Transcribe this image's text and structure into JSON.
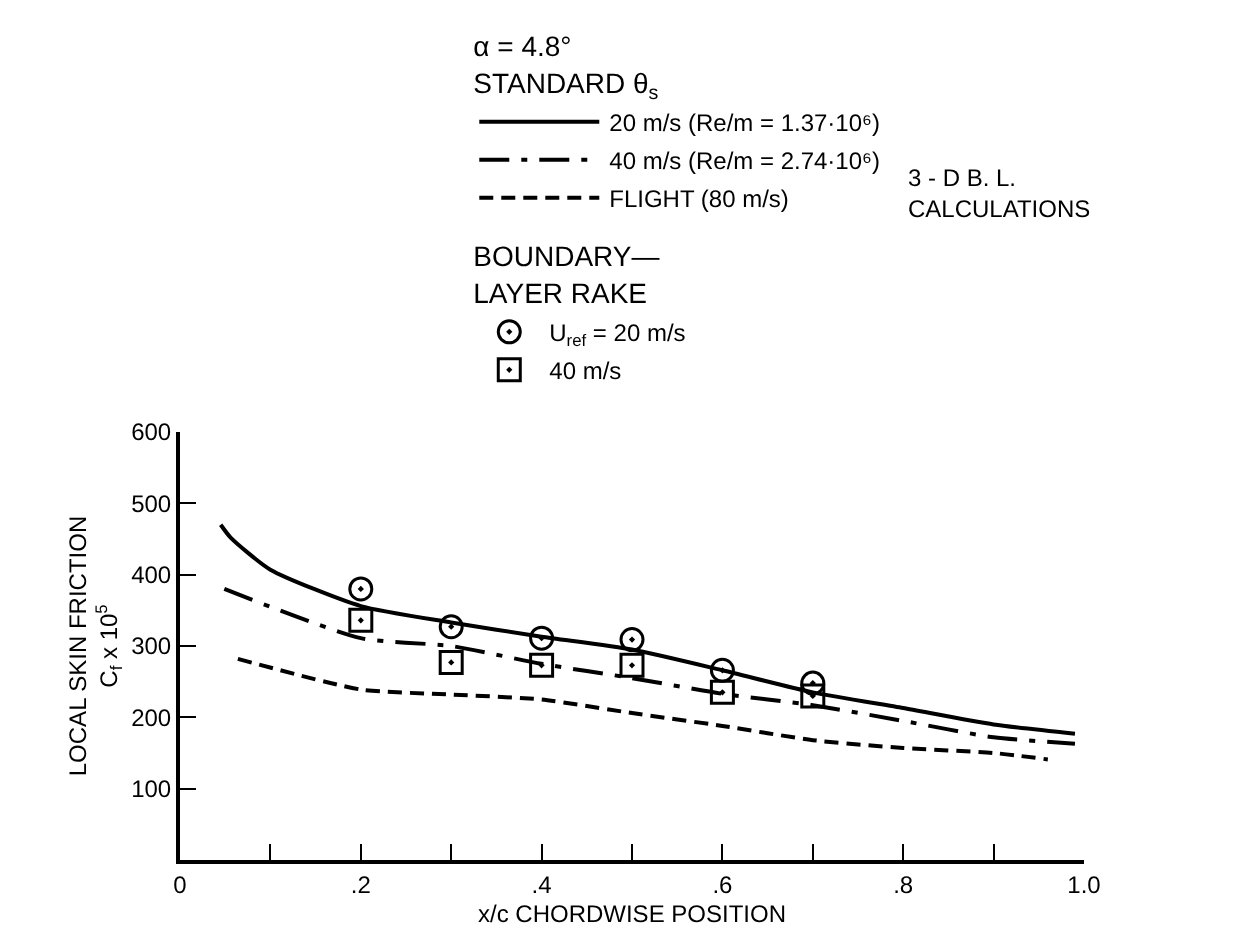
{
  "chart_data": {
    "type": "line",
    "legend_title": "α = 4.8°\nSTANDARD θ$_{s}$",
    "xlabel": "x/c CHORDWISE POSITION",
    "ylabel": "LOCAL SKIN FRICTION\nC$_{f}$ x 10$^{5}$",
    "xlim": [
      0,
      1.0
    ],
    "ylim": [
      0,
      600
    ],
    "xticks": [
      {
        "value": 0,
        "label": "0"
      },
      {
        "value": 0.1,
        "label": null
      },
      {
        "value": 0.2,
        "label": ".2"
      },
      {
        "value": 0.3,
        "label": null
      },
      {
        "value": 0.4,
        "label": ".4"
      },
      {
        "value": 0.5,
        "label": null
      },
      {
        "value": 0.6,
        "label": ".6"
      },
      {
        "value": 0.7,
        "label": null
      },
      {
        "value": 0.8,
        "label": ".8"
      },
      {
        "value": 0.9,
        "label": null
      },
      {
        "value": 1.0,
        "label": "1.0"
      }
    ],
    "yticks": [
      100,
      200,
      300,
      400,
      500,
      600
    ],
    "legend": "top",
    "annotations": [
      "3 - D B. L.\nCALCULATIONS",
      "BOUNDARY—\nLAYER RAKE"
    ],
    "series": [
      {
        "name": "20 m/s (Re/m = 1.37·10⁶)",
        "color": "#000000",
        "line_style": "solid",
        "marker": "none",
        "x": [
          0.045,
          0.056,
          0.1,
          0.2,
          0.3,
          0.4,
          0.5,
          0.6,
          0.7,
          0.8,
          0.9,
          0.99
        ],
        "values": [
          470,
          452,
          407,
          356,
          333,
          313,
          295,
          266,
          235,
          213,
          190,
          177
        ]
      },
      {
        "name": "40 m/s (Re/m = 2.74·10⁶)",
        "color": "#000000",
        "line_style": "dashdot",
        "marker": "none",
        "x": [
          0.049,
          0.2,
          0.3,
          0.4,
          0.5,
          0.6,
          0.7,
          0.8,
          0.9,
          0.99
        ],
        "values": [
          380,
          311,
          300,
          275,
          255,
          233,
          217,
          195,
          172,
          163
        ]
      },
      {
        "name": "FLIGHT (80 m/s)",
        "color": "#000000",
        "line_style": "dashed",
        "marker": "none",
        "x": [
          0.064,
          0.2,
          0.3,
          0.4,
          0.5,
          0.6,
          0.7,
          0.8,
          0.9,
          0.96
        ],
        "values": [
          282,
          239,
          232,
          225,
          206,
          188,
          168,
          157,
          150,
          141
        ]
      },
      {
        "name": "U$_{ref}$ = 20 m/s",
        "type": "scatter",
        "color": "#000000",
        "marker": "circle",
        "x": [
          0.2,
          0.3,
          0.4,
          0.5,
          0.6,
          0.7
        ],
        "values": [
          380,
          327,
          311,
          309,
          266,
          248
        ]
      },
      {
        "name": "40 m/s",
        "type": "scatter",
        "color": "#000000",
        "marker": "square",
        "x": [
          0.2,
          0.3,
          0.4,
          0.5,
          0.6,
          0.7
        ],
        "values": [
          336,
          277,
          273,
          273,
          235,
          230
        ]
      }
    ]
  }
}
